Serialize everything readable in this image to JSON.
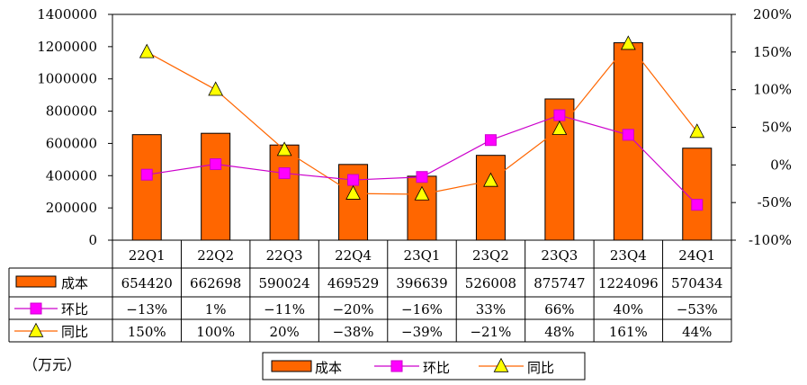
{
  "chart_data": {
    "type": "bar",
    "categories": [
      "22Q1",
      "22Q2",
      "22Q3",
      "22Q4",
      "23Q1",
      "23Q2",
      "23Q3",
      "23Q4",
      "24Q1"
    ],
    "series": [
      {
        "name": "成本",
        "kind": "bar",
        "axis": "left",
        "color": "#FF6600",
        "values": [
          654420,
          662698,
          590024,
          469529,
          396639,
          526008,
          875747,
          1224096,
          570434
        ]
      },
      {
        "name": "环比",
        "kind": "line",
        "axis": "right",
        "color": "#CC00CC",
        "marker": "square",
        "marker_color": "#FF00FF",
        "values": [
          -13,
          1,
          -11,
          -20,
          -16,
          33,
          66,
          40,
          -53
        ]
      },
      {
        "name": "同比",
        "kind": "line",
        "axis": "right",
        "color": "#FF6600",
        "marker": "triangle",
        "marker_color": "#FFFF00",
        "values": [
          150,
          100,
          20,
          -38,
          -39,
          -21,
          48,
          161,
          44
        ]
      }
    ],
    "table": {
      "rows": [
        {
          "label": "成本",
          "cells": [
            "654420",
            "662698",
            "590024",
            "469529",
            "396639",
            "526008",
            "875747",
            "1224096",
            "570434"
          ]
        },
        {
          "label": "环比",
          "cells": [
            "-13%",
            "1%",
            "-11%",
            "-20%",
            "-16%",
            "33%",
            "66%",
            "40%",
            "-53%"
          ]
        },
        {
          "label": "同比",
          "cells": [
            "150%",
            "100%",
            "20%",
            "-38%",
            "-39%",
            "-21%",
            "48%",
            "161%",
            "44%"
          ]
        }
      ]
    },
    "left_axis": {
      "ticks": [
        "0",
        "200000",
        "400000",
        "600000",
        "800000",
        "1000000",
        "1200000",
        "1400000"
      ],
      "ylim": [
        0,
        1400000
      ]
    },
    "right_axis": {
      "ticks": [
        "-100%",
        "-50%",
        "0%",
        "50%",
        "100%",
        "150%",
        "200%"
      ],
      "ylim": [
        -100,
        200
      ]
    },
    "legend": [
      "成本",
      "环比",
      "同比"
    ],
    "legend_position": "bottom",
    "grid": false
  },
  "unit_label": "（万元）"
}
